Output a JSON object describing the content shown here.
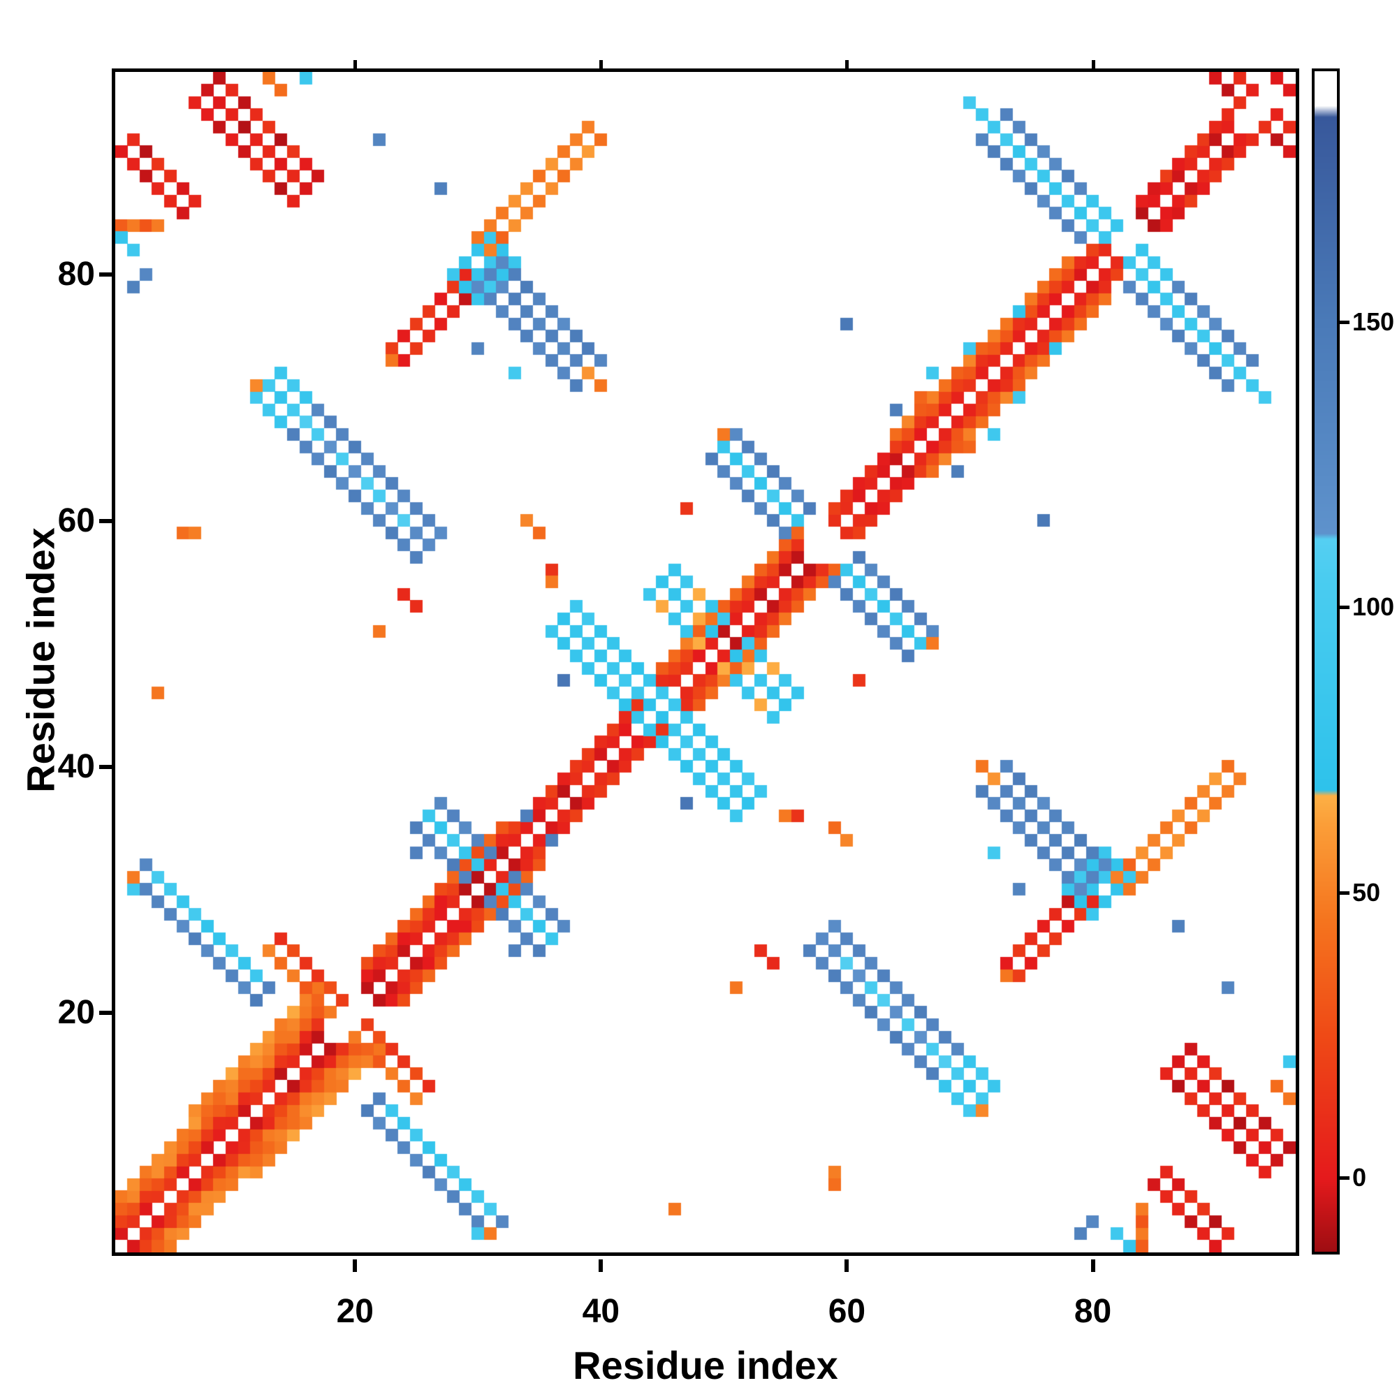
{
  "figure": {
    "title": "",
    "x_axis_label": "Residue index",
    "y_axis_label": "Residue index"
  },
  "chart_data": {
    "type": "heatmap",
    "title": "",
    "xlabel": "Residue index",
    "ylabel": "Residue index",
    "x_range": [
      0.5,
      96.5
    ],
    "y_range": [
      0.5,
      96.5
    ],
    "n_residues": 96,
    "x_ticks": [
      20,
      40,
      60,
      80
    ],
    "y_ticks": [
      20,
      40,
      60,
      80
    ],
    "grid": false,
    "legend": "none",
    "symmetric": true,
    "background_value_color": "#ffffff",
    "colorbar": {
      "position": "right",
      "ticks": [
        0,
        50,
        100,
        150
      ],
      "range": [
        -13,
        194
      ],
      "stops": [
        [
          -13,
          "#9e0d12"
        ],
        [
          0,
          "#e51a1c"
        ],
        [
          25,
          "#ef4a16"
        ],
        [
          45,
          "#f5741e"
        ],
        [
          62,
          "#fb9e38"
        ],
        [
          67,
          "#fdb045"
        ],
        [
          68,
          "#2ec2eb"
        ],
        [
          105,
          "#4accf0"
        ],
        [
          112,
          "#55cff2"
        ],
        [
          113,
          "#5e92cc"
        ],
        [
          150,
          "#4a7ab8"
        ],
        [
          186,
          "#38589b"
        ],
        [
          188,
          "#ffffff"
        ],
        [
          194,
          "#ffffff"
        ]
      ]
    },
    "jitter": 6,
    "diagonal_bands": [
      [
        1,
        6,
        [
          [
            1,
            10
          ],
          [
            2,
            28
          ],
          [
            3,
            50
          ],
          [
            4,
            58
          ]
        ]
      ],
      [
        7,
        17,
        [
          [
            1,
            8
          ],
          [
            2,
            22
          ],
          [
            3,
            45
          ],
          [
            4,
            55
          ],
          [
            5,
            60
          ]
        ]
      ],
      [
        21,
        32,
        [
          [
            1,
            6
          ],
          [
            2,
            15
          ],
          [
            3,
            38
          ]
        ]
      ],
      [
        33,
        43,
        [
          [
            1,
            8
          ],
          [
            2,
            18
          ]
        ]
      ],
      [
        45,
        56,
        [
          [
            1,
            8
          ],
          [
            2,
            20
          ],
          [
            3,
            45
          ]
        ]
      ],
      [
        59,
        63,
        [
          [
            1,
            6
          ],
          [
            2,
            14
          ]
        ]
      ],
      [
        64,
        78,
        [
          [
            1,
            9
          ],
          [
            2,
            26
          ],
          [
            3,
            48
          ]
        ]
      ],
      [
        79,
        81,
        [
          [
            1,
            8
          ],
          [
            2,
            18
          ]
        ]
      ],
      [
        84,
        91,
        [
          [
            1,
            6
          ],
          [
            2,
            13
          ]
        ]
      ],
      [
        95,
        96,
        [
          [
            1,
            6
          ],
          [
            2,
            12
          ]
        ]
      ]
    ],
    "segments": [
      {
        "d": "a",
        "i": 2,
        "j": 31,
        "n": 11,
        "w": 2,
        "v": 140,
        "v2": 96
      },
      {
        "d": "a",
        "i": 4,
        "j": 31,
        "n": 9,
        "w": 1,
        "v": 92
      },
      {
        "d": "a",
        "i": 13,
        "j": 25,
        "n": 6,
        "w": 2,
        "v": 48,
        "v2": 26
      },
      {
        "d": "a",
        "i": 26,
        "j": 36,
        "n": 6,
        "w": 3,
        "v": 88,
        "v2": 140
      },
      {
        "d": "a",
        "i": 37,
        "j": 52,
        "n": 11,
        "w": 3,
        "v": 85,
        "v2": 96
      },
      {
        "d": "a",
        "i": 45,
        "j": 55,
        "n": 7,
        "w": 3,
        "v": 82
      },
      {
        "d": "a",
        "i": 50,
        "j": 66,
        "n": 7,
        "w": 3,
        "v": 142,
        "v2": 92
      },
      {
        "d": "a",
        "i": 72,
        "j": 92,
        "n": 9,
        "w": 3,
        "v": 140,
        "v2": 92
      },
      {
        "d": "a",
        "i": 79,
        "j": 85,
        "n": 3,
        "w": 2,
        "v": 90
      },
      {
        "d": "a",
        "i": 16,
        "j": 68,
        "n": 11,
        "w": 3,
        "v": 140,
        "v2": 120
      },
      {
        "d": "a",
        "i": 13,
        "j": 71,
        "n": 3,
        "w": 3,
        "v": 92
      },
      {
        "d": "d",
        "i": 23,
        "j": 74,
        "n": 7,
        "w": 2,
        "v": 12
      },
      {
        "d": "d",
        "i": 29,
        "j": 79,
        "n": 4,
        "w": 3,
        "v": 88
      },
      {
        "d": "a",
        "i": 31,
        "j": 80,
        "n": 9,
        "w": 3,
        "v": 140,
        "v2": 90
      },
      {
        "d": "d",
        "i": 30,
        "j": 83,
        "n": 10,
        "w": 2,
        "v": 55,
        "v2": 42
      },
      {
        "d": "a",
        "i": 8,
        "j": 95,
        "n": 9,
        "w": 3,
        "v": 8,
        "v2": 20
      },
      {
        "d": "a",
        "i": 1,
        "j": 90,
        "n": 6,
        "w": 2,
        "v": 10
      },
      {
        "d": "h",
        "i": 1,
        "j": 84,
        "n": 4,
        "w": 1,
        "v": 48
      },
      {
        "d": "a",
        "i": 90,
        "j": 96,
        "n": 6,
        "w": 2,
        "v": 10
      }
    ],
    "singles": [
      [
        6,
        59,
        52
      ],
      [
        7,
        59,
        50
      ],
      [
        34,
        60,
        50
      ],
      [
        35,
        59,
        52
      ],
      [
        33,
        72,
        90
      ],
      [
        30,
        74,
        140
      ],
      [
        24,
        54,
        12
      ],
      [
        25,
        53,
        12
      ],
      [
        37,
        47,
        160
      ],
      [
        34,
        36,
        140
      ],
      [
        36,
        56,
        12
      ],
      [
        36,
        55,
        50
      ],
      [
        22,
        51,
        50
      ],
      [
        22,
        91,
        145
      ],
      [
        27,
        87,
        145
      ],
      [
        25,
        33,
        140
      ],
      [
        60,
        76,
        148
      ],
      [
        64,
        69,
        155
      ],
      [
        47,
        61,
        12
      ],
      [
        50,
        67,
        55
      ],
      [
        39,
        72,
        55
      ],
      [
        40,
        71,
        50
      ],
      [
        13,
        96,
        45
      ],
      [
        14,
        95,
        45
      ],
      [
        16,
        96,
        90
      ],
      [
        1,
        83,
        90
      ],
      [
        2,
        82,
        92
      ],
      [
        2,
        79,
        140
      ],
      [
        3,
        80,
        140
      ],
      [
        67,
        72,
        88
      ],
      [
        70,
        74,
        88
      ],
      [
        74,
        77,
        88
      ],
      [
        66,
        70,
        50
      ],
      [
        72,
        75,
        52
      ],
      [
        4,
        46,
        50
      ],
      [
        23,
        73,
        50
      ],
      [
        56,
        60,
        90
      ],
      [
        70,
        94,
        95
      ],
      [
        71,
        93,
        95
      ],
      [
        12,
        71,
        52
      ],
      [
        2,
        30,
        95
      ],
      [
        2,
        31,
        50
      ]
    ]
  }
}
